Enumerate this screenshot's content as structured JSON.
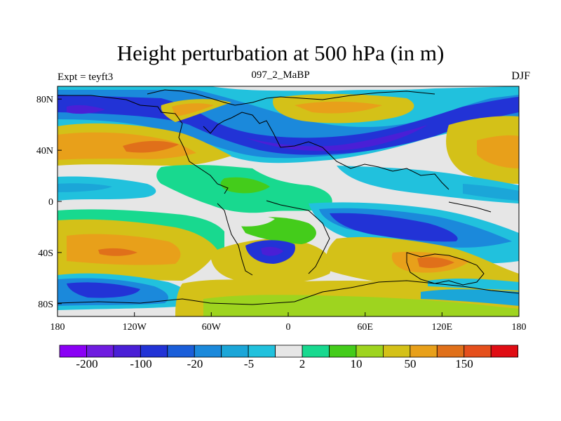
{
  "title": "Height perturbation at 500 hPa (in m)",
  "left_label": "Expt = teyft3",
  "center_label": "097_2_MaBP",
  "right_label": "DJF",
  "map": {
    "lon_ticks": [
      "180",
      "120W",
      "60W",
      "0",
      "60E",
      "120E",
      "180"
    ],
    "lat_ticks": [
      "80N",
      "40N",
      "0",
      "40S",
      "80S"
    ]
  },
  "colorbar": {
    "colors": [
      "#8a00f5",
      "#6f1ce0",
      "#4a1fd6",
      "#2233d6",
      "#1a5ed9",
      "#1b89db",
      "#1ba6d8",
      "#21c1dd",
      "#e6e6e6",
      "#18d98f",
      "#44cc1b",
      "#9ed41f",
      "#d4c118",
      "#e8a01a",
      "#e0701a",
      "#e54f1c",
      "#e00d14"
    ],
    "tick_labels": [
      "-200",
      "-100",
      "-20",
      "-5",
      "2",
      "10",
      "50",
      "150"
    ]
  },
  "chart_data": {
    "type": "heatmap",
    "title": "Height perturbation at 500 hPa (in m)",
    "subtitle": "097_2_MaBP",
    "xlabel": "",
    "ylabel": "",
    "xlim": [
      -180,
      180
    ],
    "ylim": [
      -90,
      90
    ],
    "levels": [
      -200,
      -100,
      -20,
      -5,
      2,
      10,
      50,
      150
    ],
    "bands": [
      {
        "lat": 74,
        "value": -60
      },
      {
        "lat": 42,
        "value": 80
      },
      {
        "lat": 15,
        "value": -8
      },
      {
        "lat": 0,
        "value": 0
      },
      {
        "lat": -18,
        "value": 5
      },
      {
        "lat": -40,
        "value": 70
      },
      {
        "lat": -62,
        "value": -40
      },
      {
        "lat": -80,
        "value": 30
      }
    ]
  }
}
